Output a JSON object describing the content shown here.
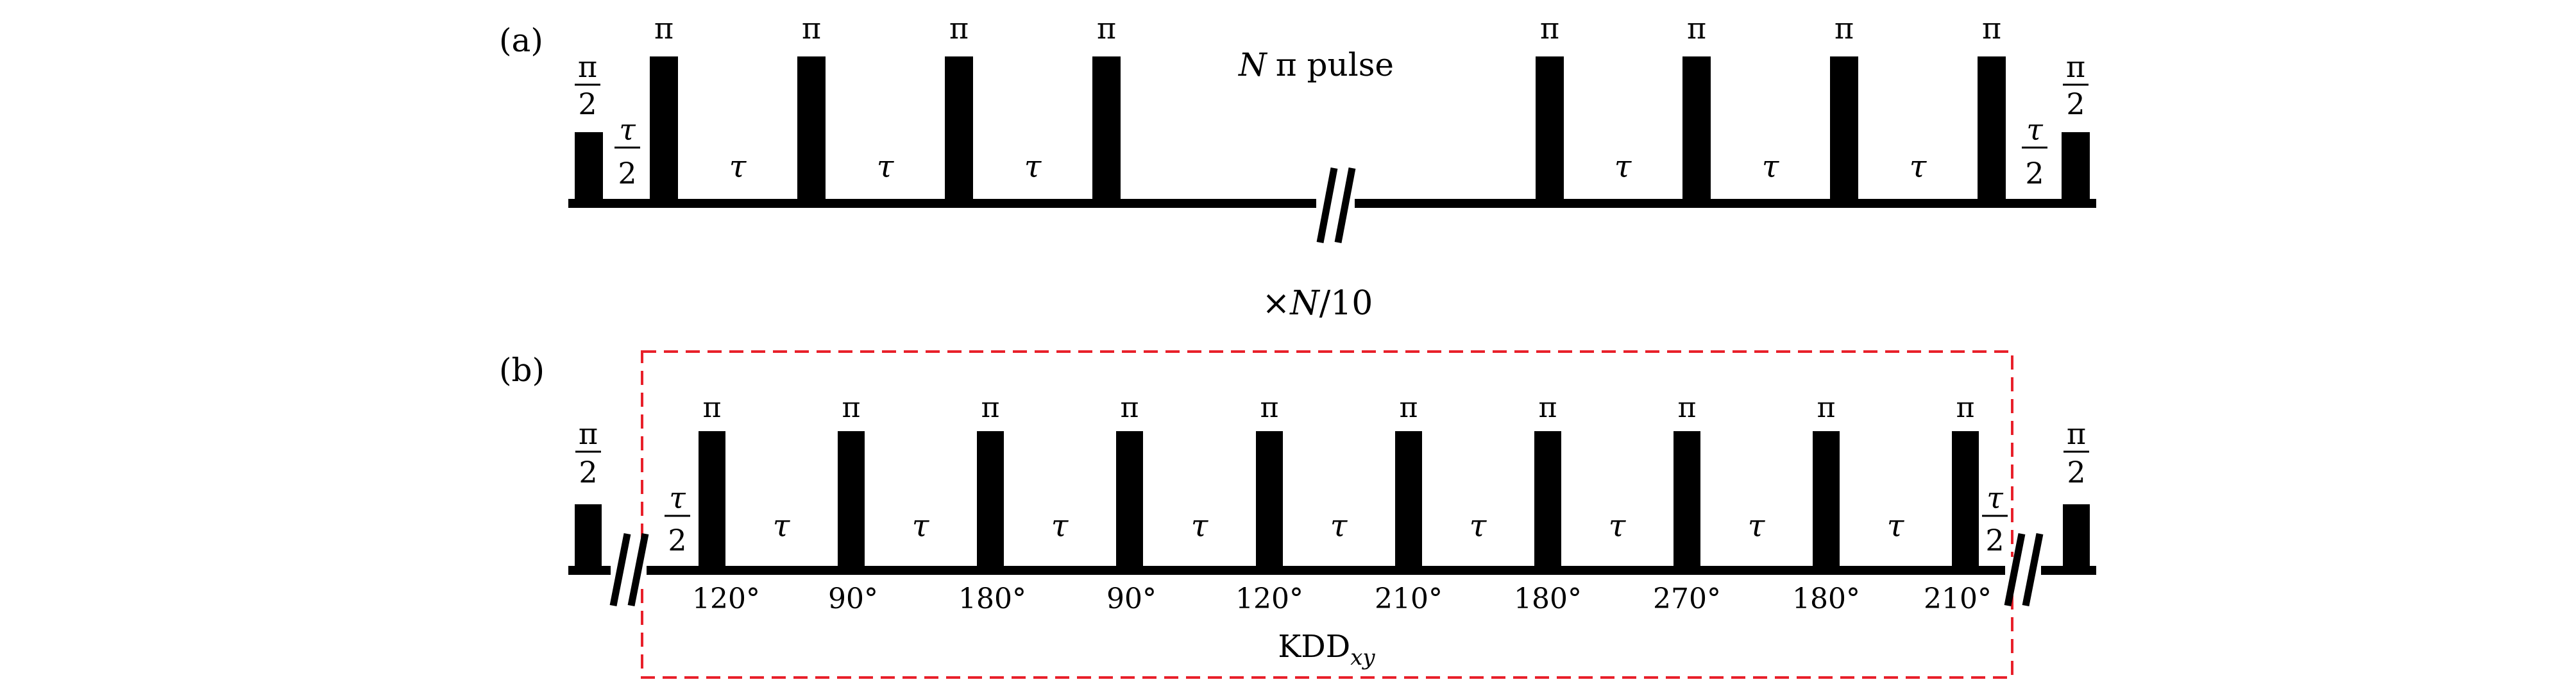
{
  "panel_a": {
    "label": "(a)",
    "title_n": "N",
    "title_rest": "π pulse",
    "pi_label": "π",
    "half_pi_label": {
      "num": "π",
      "den": "2"
    },
    "tau_label": "τ",
    "half_tau_label": {
      "num": "τ",
      "den": "2"
    }
  },
  "repeat_label": {
    "prefix": "×",
    "n": "N",
    "suffix": "/10"
  },
  "panel_b": {
    "label": "(b)",
    "pi_label": "π",
    "half_pi_label": {
      "num": "π",
      "den": "2"
    },
    "tau_label": "τ",
    "half_tau_label": {
      "num": "τ",
      "den": "2"
    },
    "phases": [
      "120°",
      "90°",
      "180°",
      "90°",
      "120°",
      "210°",
      "180°",
      "270°",
      "180°",
      "210°"
    ],
    "box_label": {
      "main": "KDD",
      "sub": "xy"
    }
  },
  "colors": {
    "box": "#e8202a",
    "ink": "#000000"
  }
}
